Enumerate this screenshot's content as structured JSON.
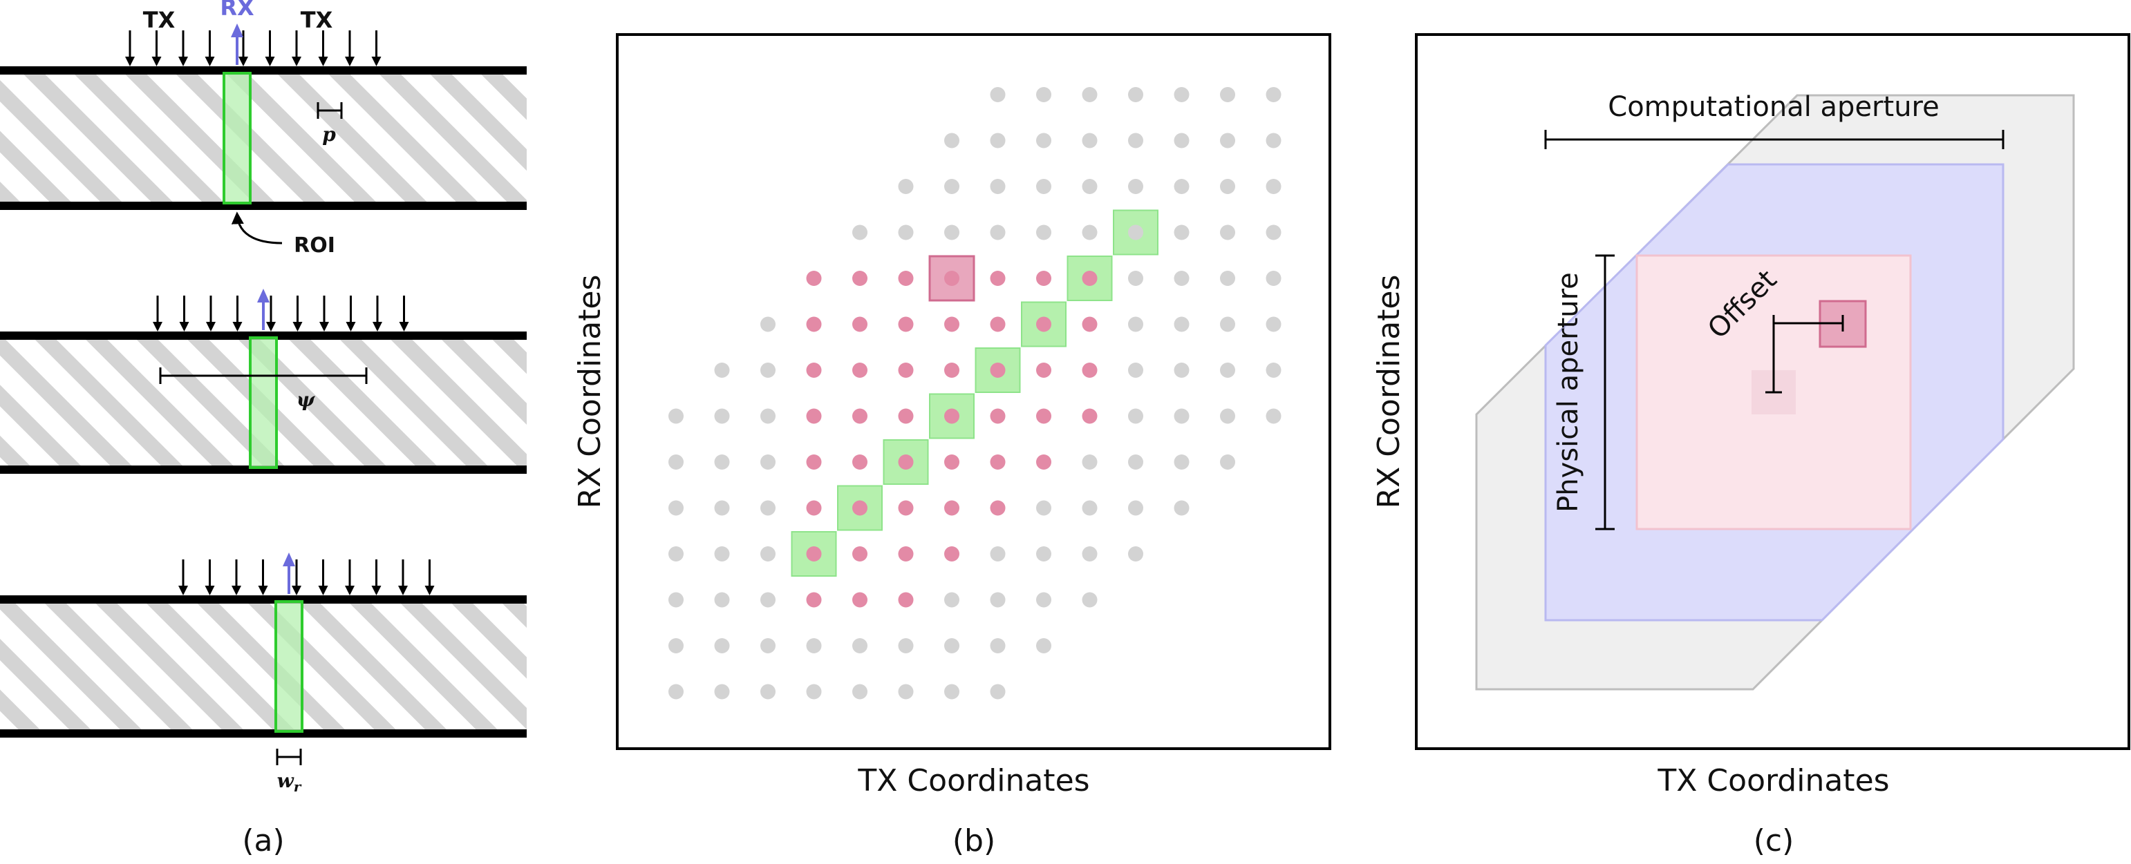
{
  "panel_a": {
    "caption": "(a)",
    "tx_label": "TX",
    "rx_label": "RX",
    "roi_label": "ROI",
    "pitch_label": "p",
    "psi_label": "ψ",
    "width_label": "w",
    "width_sub": "r",
    "colors": {
      "rx_arrow": "#6b6bdc",
      "roi_box": "#2ecc2e",
      "roi_fill": "#b6f0b0",
      "hatch": "#d0d0d0"
    }
  },
  "panel_b": {
    "caption": "(b)",
    "xlabel": "TX Coordinates",
    "ylabel": "RX Coordinates",
    "colors": {
      "grey_dot": "#d3d3d3",
      "pink_dot": "#e38aa6",
      "green_box": "#b5f0ad",
      "pink_box": "#e8a7bd"
    }
  },
  "panel_c": {
    "caption": "(c)",
    "xlabel": "TX Coordinates",
    "ylabel": "RX Coordinates",
    "computational_label": "Computational aperture",
    "physical_label": "Physical aperture",
    "offset_label": "Offset",
    "colors": {
      "grey_region": "#eeeeee",
      "blue_region": "#dcdcfb",
      "pink_region": "#fbe4ea",
      "pink_box": "#e8a7bd"
    }
  }
}
